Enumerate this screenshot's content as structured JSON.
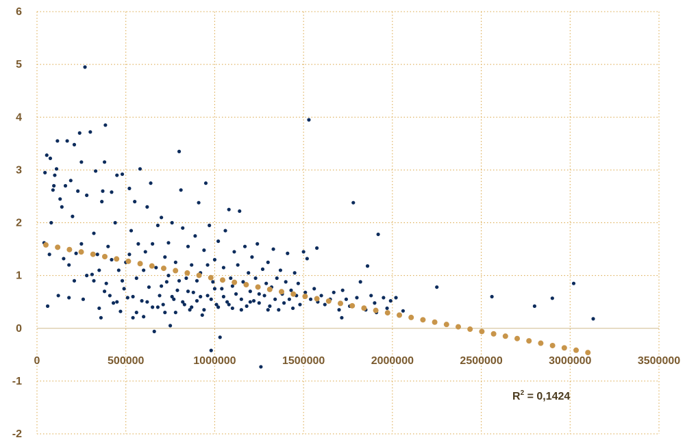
{
  "chart_data": {
    "type": "scatter",
    "title": "",
    "xlabel": "",
    "ylabel": "",
    "xlim": [
      0,
      3500000
    ],
    "ylim": [
      -2,
      6
    ],
    "x_ticks": [
      0,
      500000,
      1000000,
      1500000,
      2000000,
      2500000,
      3000000,
      3500000
    ],
    "y_ticks": [
      -2,
      -1,
      0,
      1,
      2,
      3,
      4,
      5,
      6
    ],
    "x_tick_labels": [
      "0",
      "500000",
      "1000000",
      "1500000",
      "2000000",
      "2500000",
      "3000000",
      "3500000"
    ],
    "y_tick_labels": [
      "-2",
      "-1",
      "0",
      "1",
      "2",
      "3",
      "4",
      "5",
      "6"
    ],
    "grid": true,
    "legend": "none",
    "series": [
      {
        "kind": "scatter",
        "color": "#0d2c5c",
        "points": [
          [
            40000,
            1.62
          ],
          [
            45000,
            2.95
          ],
          [
            55000,
            3.28
          ],
          [
            60000,
            0.42
          ],
          [
            70000,
            1.4
          ],
          [
            75000,
            3.22
          ],
          [
            80000,
            2.0
          ],
          [
            90000,
            2.62
          ],
          [
            95000,
            2.7
          ],
          [
            100000,
            2.9
          ],
          [
            110000,
            3.02
          ],
          [
            115000,
            3.55
          ],
          [
            120000,
            0.62
          ],
          [
            130000,
            2.45
          ],
          [
            140000,
            2.3
          ],
          [
            150000,
            1.32
          ],
          [
            160000,
            2.7
          ],
          [
            170000,
            3.55
          ],
          [
            180000,
            0.58
          ],
          [
            190000,
            2.8
          ],
          [
            200000,
            2.12
          ],
          [
            210000,
            3.48
          ],
          [
            220000,
            1.42
          ],
          [
            230000,
            2.6
          ],
          [
            240000,
            3.7
          ],
          [
            250000,
            3.15
          ],
          [
            260000,
            0.55
          ],
          [
            270000,
            4.95
          ],
          [
            280000,
            2.52
          ],
          [
            300000,
            3.72
          ],
          [
            310000,
            1.02
          ],
          [
            320000,
            0.9
          ],
          [
            330000,
            2.98
          ],
          [
            340000,
            1.4
          ],
          [
            350000,
            0.38
          ],
          [
            360000,
            0.2
          ],
          [
            365000,
            2.4
          ],
          [
            370000,
            2.6
          ],
          [
            380000,
            3.15
          ],
          [
            385000,
            3.85
          ],
          [
            390000,
            0.85
          ],
          [
            400000,
            1.55
          ],
          [
            410000,
            0.62
          ],
          [
            420000,
            2.58
          ],
          [
            430000,
            0.48
          ],
          [
            440000,
            2.0
          ],
          [
            450000,
            2.9
          ],
          [
            460000,
            1.1
          ],
          [
            470000,
            0.32
          ],
          [
            480000,
            2.92
          ],
          [
            490000,
            0.75
          ],
          [
            500000,
            1.25
          ],
          [
            510000,
            0.58
          ],
          [
            520000,
            2.65
          ],
          [
            530000,
            1.85
          ],
          [
            540000,
            0.2
          ],
          [
            550000,
            2.4
          ],
          [
            560000,
            0.95
          ],
          [
            570000,
            1.6
          ],
          [
            580000,
            3.02
          ],
          [
            590000,
            0.52
          ],
          [
            600000,
            0.22
          ],
          [
            610000,
            1.45
          ],
          [
            620000,
            2.3
          ],
          [
            630000,
            0.78
          ],
          [
            640000,
            2.75
          ],
          [
            650000,
            0.4
          ],
          [
            660000,
            -0.06
          ],
          [
            670000,
            1.15
          ],
          [
            680000,
            1.95
          ],
          [
            690000,
            0.62
          ],
          [
            700000,
            2.1
          ],
          [
            710000,
            0.45
          ],
          [
            720000,
            1.35
          ],
          [
            730000,
            0.88
          ],
          [
            740000,
            1.62
          ],
          [
            750000,
            0.05
          ],
          [
            760000,
            2.0
          ],
          [
            770000,
            0.55
          ],
          [
            780000,
            1.25
          ],
          [
            790000,
            0.72
          ],
          [
            800000,
            3.35
          ],
          [
            810000,
            2.62
          ],
          [
            820000,
            1.9
          ],
          [
            830000,
            0.45
          ],
          [
            840000,
            0.95
          ],
          [
            850000,
            1.55
          ],
          [
            860000,
            0.35
          ],
          [
            870000,
            1.2
          ],
          [
            880000,
            0.68
          ],
          [
            890000,
            1.75
          ],
          [
            900000,
            0.52
          ],
          [
            910000,
            2.38
          ],
          [
            920000,
            1.05
          ],
          [
            930000,
            0.25
          ],
          [
            940000,
            1.48
          ],
          [
            950000,
            2.75
          ],
          [
            960000,
            0.62
          ],
          [
            970000,
            1.95
          ],
          [
            980000,
            -0.42
          ],
          [
            990000,
            0.88
          ],
          [
            1000000,
            1.3
          ],
          [
            1010000,
            0.45
          ],
          [
            1020000,
            1.65
          ],
          [
            1030000,
            -0.17
          ],
          [
            1040000,
            0.75
          ],
          [
            1050000,
            1.15
          ],
          [
            1060000,
            1.85
          ],
          [
            1070000,
            0.5
          ],
          [
            1080000,
            2.25
          ],
          [
            1090000,
            0.95
          ],
          [
            1100000,
            0.38
          ],
          [
            1110000,
            1.45
          ],
          [
            1120000,
            0.65
          ],
          [
            1130000,
            1.2
          ],
          [
            1140000,
            2.22
          ],
          [
            1150000,
            0.55
          ],
          [
            1160000,
            0.88
          ],
          [
            1170000,
            1.55
          ],
          [
            1180000,
            0.42
          ],
          [
            1190000,
            1.05
          ],
          [
            1200000,
            0.7
          ],
          [
            1210000,
            1.35
          ],
          [
            1220000,
            0.52
          ],
          [
            1230000,
            0.95
          ],
          [
            1240000,
            1.6
          ],
          [
            1250000,
            0.48
          ],
          [
            1260000,
            -0.73
          ],
          [
            1270000,
            1.12
          ],
          [
            1280000,
            0.62
          ],
          [
            1290000,
            0.85
          ],
          [
            1300000,
            1.25
          ],
          [
            1310000,
            0.42
          ],
          [
            1320000,
            0.78
          ],
          [
            1330000,
            1.5
          ],
          [
            1340000,
            0.55
          ],
          [
            1350000,
            0.95
          ],
          [
            1360000,
            0.35
          ],
          [
            1370000,
            1.1
          ],
          [
            1380000,
            0.65
          ],
          [
            1390000,
            0.48
          ],
          [
            1400000,
            0.88
          ],
          [
            1410000,
            1.42
          ],
          [
            1420000,
            0.55
          ],
          [
            1430000,
            0.72
          ],
          [
            1440000,
            0.38
          ],
          [
            1450000,
            1.05
          ],
          [
            1460000,
            0.62
          ],
          [
            1470000,
            0.85
          ],
          [
            1480000,
            0.45
          ],
          [
            1500000,
            1.45
          ],
          [
            1510000,
            0.68
          ],
          [
            1520000,
            1.32
          ],
          [
            1530000,
            3.95
          ],
          [
            1540000,
            0.55
          ],
          [
            1560000,
            0.75
          ],
          [
            1575000,
            1.52
          ],
          [
            1580000,
            0.5
          ],
          [
            1600000,
            0.62
          ],
          [
            1620000,
            0.45
          ],
          [
            1650000,
            0.55
          ],
          [
            1670000,
            0.68
          ],
          [
            1700000,
            0.35
          ],
          [
            1715000,
            0.2
          ],
          [
            1720000,
            0.72
          ],
          [
            1740000,
            0.55
          ],
          [
            1760000,
            0.42
          ],
          [
            1780000,
            2.38
          ],
          [
            1800000,
            0.58
          ],
          [
            1820000,
            0.88
          ],
          [
            1850000,
            0.35
          ],
          [
            1860000,
            1.18
          ],
          [
            1880000,
            0.62
          ],
          [
            1900000,
            0.48
          ],
          [
            1910000,
            0.3
          ],
          [
            1920000,
            1.78
          ],
          [
            1950000,
            0.58
          ],
          [
            1970000,
            0.38
          ],
          [
            1990000,
            0.52
          ],
          [
            2020000,
            0.58
          ],
          [
            2060000,
            0.33
          ],
          [
            2250000,
            0.78
          ],
          [
            2560000,
            0.6
          ],
          [
            2800000,
            0.42
          ],
          [
            2900000,
            0.57
          ],
          [
            3020000,
            0.85
          ],
          [
            3130000,
            0.18
          ],
          [
            180000,
            1.2
          ],
          [
            210000,
            0.9
          ],
          [
            250000,
            1.6
          ],
          [
            280000,
            1.0
          ],
          [
            320000,
            1.8
          ],
          [
            350000,
            1.1
          ],
          [
            380000,
            0.7
          ],
          [
            420000,
            1.3
          ],
          [
            450000,
            0.5
          ],
          [
            480000,
            0.9
          ],
          [
            520000,
            1.4
          ],
          [
            540000,
            0.6
          ],
          [
            560000,
            0.3
          ],
          [
            600000,
            1.1
          ],
          [
            620000,
            0.5
          ],
          [
            650000,
            1.6
          ],
          [
            680000,
            0.4
          ],
          [
            700000,
            0.8
          ],
          [
            720000,
            0.3
          ],
          [
            740000,
            1.0
          ],
          [
            760000,
            0.6
          ],
          [
            780000,
            0.3
          ],
          [
            800000,
            0.9
          ],
          [
            820000,
            0.5
          ],
          [
            850000,
            0.7
          ],
          [
            870000,
            0.4
          ],
          [
            900000,
            0.9
          ],
          [
            920000,
            0.6
          ],
          [
            940000,
            0.35
          ],
          [
            960000,
            1.2
          ],
          [
            980000,
            0.55
          ],
          [
            1000000,
            0.75
          ],
          [
            1020000,
            0.4
          ],
          [
            1050000,
            0.6
          ],
          [
            1080000,
            0.45
          ],
          [
            1100000,
            0.8
          ],
          [
            1150000,
            0.35
          ],
          [
            1200000,
            0.5
          ],
          [
            1250000,
            0.65
          ],
          [
            1300000,
            0.35
          ]
        ]
      },
      {
        "kind": "trendline",
        "color": "#c8954a",
        "x_start": 50000,
        "x_end": 3100000,
        "y_start": 1.58,
        "y_end": -0.46
      }
    ],
    "annotation": {
      "prefix": "R",
      "superscript": "2",
      "suffix": " = 0,1424"
    }
  }
}
